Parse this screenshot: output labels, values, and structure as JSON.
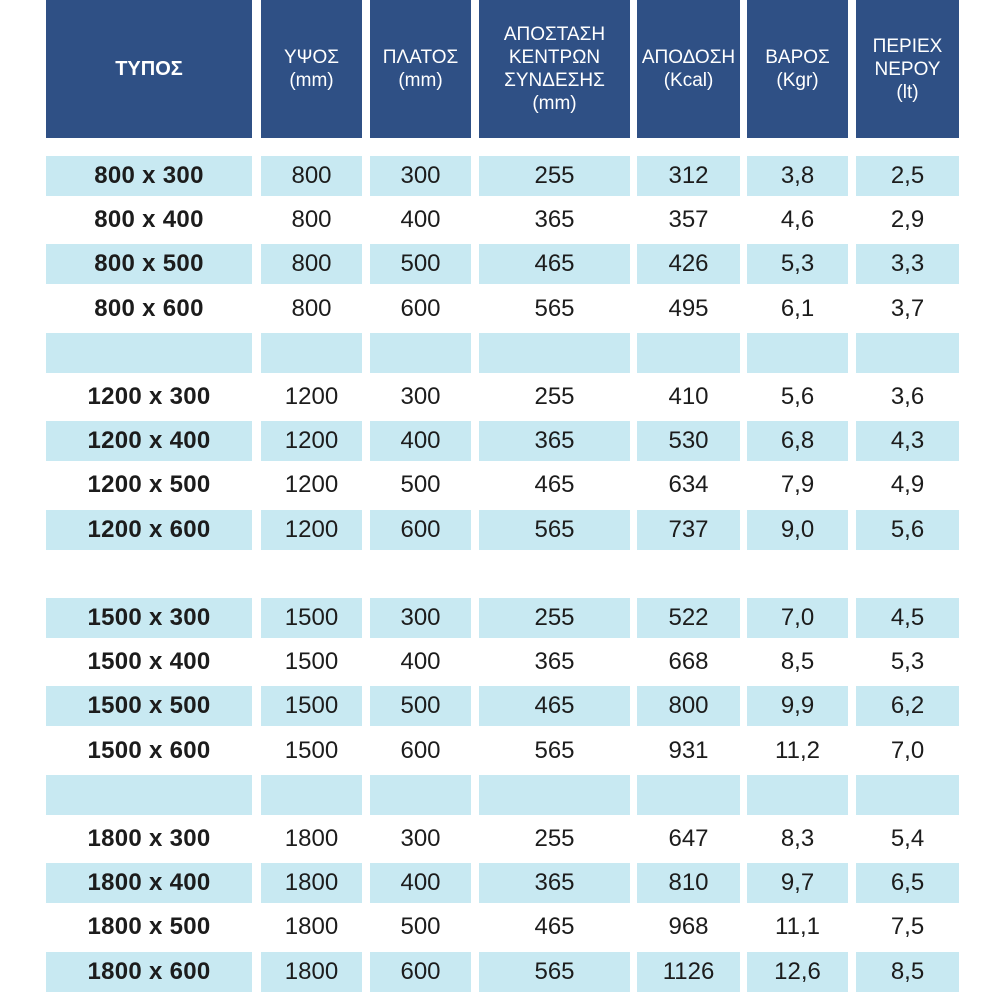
{
  "table": {
    "headers": [
      "ΤΥΠΟΣ",
      "ΥΨΟΣ\n(mm)",
      "ΠΛΑΤΟΣ\n(mm)",
      "ΑΠΟΣΤΑΣΗ\nΚΕΝΤΡΩΝ\nΣΥΝΔΕΣΗΣ\n(mm)",
      "ΑΠΟΔΟΣΗ\n(Kcal)",
      "ΒΑΡΟΣ\n(Kgr)",
      "ΠΕΡΙΕΧ\nΝΕΡΟΥ\n(lt)"
    ],
    "rows": [
      {
        "cells": [
          "800 x 300",
          "800",
          "300",
          "255",
          "312",
          "3,8",
          "2,5"
        ],
        "shaded": true
      },
      {
        "cells": [
          "800 x 400",
          "800",
          "400",
          "365",
          "357",
          "4,6",
          "2,9"
        ],
        "shaded": false
      },
      {
        "cells": [
          "800 x 500",
          "800",
          "500",
          "465",
          "426",
          "5,3",
          "3,3"
        ],
        "shaded": true
      },
      {
        "cells": [
          "800 x 600",
          "800",
          "600",
          "565",
          "495",
          "6,1",
          "3,7"
        ],
        "shaded": false
      },
      {
        "cells": [
          "",
          "",
          "",
          "",
          "",
          "",
          ""
        ],
        "shaded": true
      },
      {
        "cells": [
          "1200 x 300",
          "1200",
          "300",
          "255",
          "410",
          "5,6",
          "3,6"
        ],
        "shaded": false
      },
      {
        "cells": [
          "1200 x 400",
          "1200",
          "400",
          "365",
          "530",
          "6,8",
          "4,3"
        ],
        "shaded": true
      },
      {
        "cells": [
          "1200 x 500",
          "1200",
          "500",
          "465",
          "634",
          "7,9",
          "4,9"
        ],
        "shaded": false
      },
      {
        "cells": [
          "1200 x 600",
          "1200",
          "600",
          "565",
          "737",
          "9,0",
          "5,6"
        ],
        "shaded": true
      },
      {
        "cells": [
          "",
          "",
          "",
          "",
          "",
          "",
          ""
        ],
        "shaded": false
      },
      {
        "cells": [
          "1500 x 300",
          "1500",
          "300",
          "255",
          "522",
          "7,0",
          "4,5"
        ],
        "shaded": true
      },
      {
        "cells": [
          "1500 x 400",
          "1500",
          "400",
          "365",
          "668",
          "8,5",
          "5,3"
        ],
        "shaded": false
      },
      {
        "cells": [
          "1500 x 500",
          "1500",
          "500",
          "465",
          "800",
          "9,9",
          "6,2"
        ],
        "shaded": true
      },
      {
        "cells": [
          "1500 x 600",
          "1500",
          "600",
          "565",
          "931",
          "11,2",
          "7,0"
        ],
        "shaded": false
      },
      {
        "cells": [
          "",
          "",
          "",
          "",
          "",
          "",
          ""
        ],
        "shaded": true
      },
      {
        "cells": [
          "1800 x 300",
          "1800",
          "300",
          "255",
          "647",
          "8,3",
          "5,4"
        ],
        "shaded": false
      },
      {
        "cells": [
          "1800 x 400",
          "1800",
          "400",
          "365",
          "810",
          "9,7",
          "6,5"
        ],
        "shaded": true
      },
      {
        "cells": [
          "1800 x 500",
          "1800",
          "500",
          "465",
          "968",
          "11,1",
          "7,5"
        ],
        "shaded": false
      },
      {
        "cells": [
          "1800 x 600",
          "1800",
          "600",
          "565",
          "1126",
          "12,6",
          "8,5"
        ],
        "shaded": true
      }
    ]
  },
  "colors": {
    "header_bg": "#2f5085",
    "header_text": "#ffffff",
    "row_shade": "#c8e9f2"
  }
}
